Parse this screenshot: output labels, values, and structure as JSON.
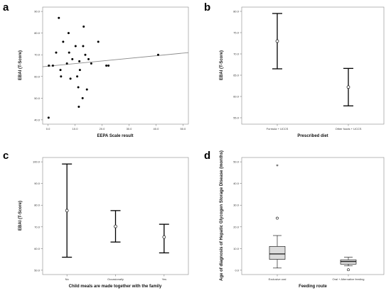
{
  "chart_data": [
    {
      "panel": "a",
      "type": "scatter",
      "xlabel": "EEPA Scale result",
      "ylabel": "EBAI (T-Score)",
      "xlim": [
        -2,
        52
      ],
      "ylim": [
        38,
        92
      ],
      "xticks": [
        "0.0",
        "10.0",
        "20.0",
        "30.0",
        "40.0",
        "50.0"
      ],
      "xtick_values": [
        0,
        10,
        20,
        30,
        40,
        50
      ],
      "yticks": [
        "40.0",
        "50.0",
        "60.0",
        "70.0",
        "80.0",
        "90.0"
      ],
      "ytick_values": [
        40,
        50,
        60,
        70,
        80,
        90
      ],
      "points": [
        {
          "x": 0.2,
          "y": 41
        },
        {
          "x": 0.3,
          "y": 65
        },
        {
          "x": 1.8,
          "y": 65
        },
        {
          "x": 3.0,
          "y": 71
        },
        {
          "x": 4.0,
          "y": 87
        },
        {
          "x": 4.6,
          "y": 63
        },
        {
          "x": 4.8,
          "y": 60
        },
        {
          "x": 5.6,
          "y": 76
        },
        {
          "x": 7.0,
          "y": 66
        },
        {
          "x": 7.6,
          "y": 80
        },
        {
          "x": 7.8,
          "y": 71
        },
        {
          "x": 8.3,
          "y": 59
        },
        {
          "x": 9.0,
          "y": 68
        },
        {
          "x": 10.2,
          "y": 74
        },
        {
          "x": 10.8,
          "y": 60
        },
        {
          "x": 11.2,
          "y": 55
        },
        {
          "x": 11.4,
          "y": 46
        },
        {
          "x": 11.6,
          "y": 67
        },
        {
          "x": 11.8,
          "y": 63
        },
        {
          "x": 12.8,
          "y": 50
        },
        {
          "x": 13.0,
          "y": 74
        },
        {
          "x": 13.2,
          "y": 83
        },
        {
          "x": 13.8,
          "y": 70
        },
        {
          "x": 14.4,
          "y": 54
        },
        {
          "x": 15.0,
          "y": 68
        },
        {
          "x": 16.0,
          "y": 66
        },
        {
          "x": 18.6,
          "y": 76
        },
        {
          "x": 21.6,
          "y": 65
        },
        {
          "x": 22.4,
          "y": 65
        },
        {
          "x": 40.8,
          "y": 70
        }
      ],
      "fit_line": {
        "x": [
          -2,
          52
        ],
        "y": [
          64.5,
          71.0
        ]
      }
    },
    {
      "panel": "b",
      "type": "errorbar",
      "xlabel": "Prescribed diet",
      "ylabel": "EBAI (T-Score)",
      "ylim": [
        53.5,
        81
      ],
      "yticks": [
        "55.0",
        "60.0",
        "65.0",
        "70.0",
        "75.0",
        "80.0"
      ],
      "ytick_values": [
        55,
        60,
        65,
        70,
        75,
        80
      ],
      "categories": [
        "Formula + UCCS",
        "Other foods + UCCS"
      ],
      "means": [
        73.0,
        62.2
      ],
      "lower": [
        66.5,
        57.8
      ],
      "upper": [
        79.5,
        66.6
      ]
    },
    {
      "panel": "c",
      "type": "errorbar",
      "xlabel": "Child meals are made together with the family",
      "ylabel": "EBAI (T-Score)",
      "ylim": [
        48,
        102
      ],
      "yticks": [
        "50.0",
        "60.0",
        "70.0",
        "80.0",
        "90.0",
        "100.0"
      ],
      "ytick_values": [
        50,
        60,
        70,
        80,
        90,
        100
      ],
      "categories": [
        "No",
        "Occasionally",
        "Yes"
      ],
      "means": [
        77.5,
        70.2,
        65.3
      ],
      "lower": [
        56.0,
        63.0,
        58.0
      ],
      "upper": [
        99.0,
        77.5,
        71.2
      ]
    },
    {
      "panel": "d",
      "type": "boxplot",
      "xlabel": "Feeding route",
      "ylabel": "Age of diagnosis of Hepatic Glycogen Storage Disease (months)",
      "ylim": [
        -2,
        52
      ],
      "yticks": [
        "0.0",
        "10.0",
        "20.0",
        "30.0",
        "40.0",
        "50.0"
      ],
      "ytick_values": [
        0,
        10,
        20,
        30,
        40,
        50
      ],
      "categories": [
        "Exclusive oral",
        "Oral + Alternative feeding"
      ],
      "boxes": [
        {
          "whisker_low": 1.0,
          "q1": 5.0,
          "median": 7.5,
          "q3": 11.0,
          "whisker_high": 16.0,
          "outliers": [
            {
              "value": 24.0,
              "marker": "circle"
            },
            {
              "value": 48.0,
              "marker": "star"
            }
          ]
        },
        {
          "whisker_low": 2.0,
          "q1": 2.8,
          "median": 4.0,
          "q3": 4.8,
          "whisker_high": 6.0,
          "outliers": [
            {
              "value": 0.2,
              "marker": "circle"
            }
          ]
        }
      ]
    }
  ],
  "panels": {
    "a": "a",
    "b": "b",
    "c": "c",
    "d": "d"
  },
  "colors": {
    "axis": "#7a7a7a",
    "data": "#000000",
    "fitline": "#8c8c8c",
    "boxfill": "#dcdcdc"
  }
}
